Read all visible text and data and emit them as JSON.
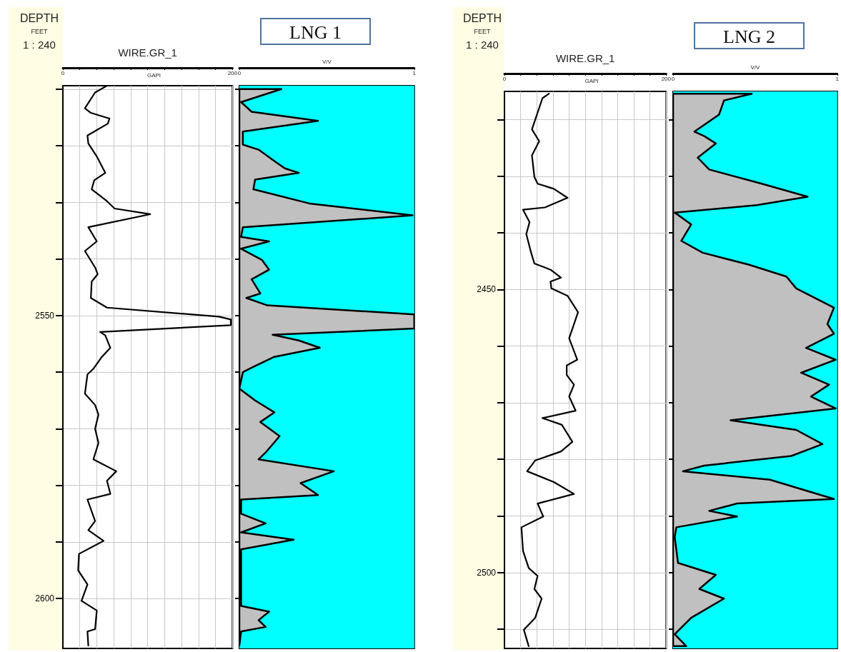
{
  "chart_data": [
    {
      "type": "line",
      "orientation": "horizontal",
      "ylabel": "DEPTH",
      "xlabel": "WIRE.GR_1",
      "annotations": [
        "FEET",
        "1 : 240",
        "GAPI"
      ],
      "x": [
        2509.4,
        2510.6,
        2513.4,
        2514.2,
        2515.2,
        2516.1,
        2518.2,
        2519.6,
        2521.9,
        2524.8,
        2526.1,
        2527.7,
        2529.8,
        2531.1,
        2532.1,
        2534.4,
        2536.9,
        2538.6,
        2541.5,
        2542.7,
        2544,
        2546.9,
        2548.6,
        2550.2,
        2550.7,
        2551.7,
        2552.9,
        2553.5,
        2555.7,
        2557.3,
        2559.4,
        2560.4,
        2563.8,
        2565.8,
        2567.5,
        2570,
        2572.5,
        2575.4,
        2577.5,
        2579.2,
        2581.5,
        2582.5,
        2586.3,
        2587.9,
        2589.8,
        2592.1,
        2595,
        2597.5,
        2600.4,
        2602.1,
        2605.4,
        2605.8,
        2608.3
      ],
      "values": [
        52,
        38,
        26,
        33,
        55,
        53,
        29,
        30,
        40,
        50,
        37,
        34,
        52,
        61,
        103,
        30,
        40,
        26,
        38,
        41,
        34,
        33,
        52,
        184,
        198,
        198,
        44,
        50,
        56,
        46,
        36,
        29,
        26,
        38,
        42,
        38,
        42,
        36,
        63,
        52,
        56,
        29,
        38,
        30,
        48,
        19,
        18,
        29,
        22,
        40,
        38,
        29,
        30
      ],
      "color": "#000000",
      "line_style": "solid",
      "grid": true,
      "xlim": [
        0,
        200
      ],
      "xticks": [
        0,
        {
          "value": 20,
          "label": null
        },
        {
          "value": 40,
          "label": null
        },
        {
          "value": 60,
          "label": null
        },
        {
          "value": 80,
          "label": null
        },
        {
          "value": 100,
          "label": null
        },
        {
          "value": 120,
          "label": null
        },
        {
          "value": 140,
          "label": null
        },
        {
          "value": 160,
          "label": null
        },
        {
          "value": 180,
          "label": null
        },
        200
      ],
      "ylim": [
        2608.8,
        2509.4
      ],
      "yticks": [
        {
          "value": 2510,
          "label": null
        },
        {
          "value": 2520,
          "label": null
        },
        {
          "value": 2530,
          "label": null
        },
        {
          "value": 2540,
          "label": null
        },
        2550,
        {
          "value": 2560,
          "label": null
        },
        {
          "value": 2570,
          "label": null
        },
        {
          "value": 2580,
          "label": null
        },
        {
          "value": 2590,
          "label": null
        },
        2600
      ]
    },
    {
      "type": "area",
      "orientation": "horizontal",
      "title": "LNG 1",
      "xlabel": "V/V",
      "x": [
        2510,
        2512.3,
        2514,
        2515.6,
        2517.5,
        2519.8,
        2520.7,
        2522.7,
        2524,
        2524.8,
        2526,
        2527.7,
        2530.2,
        2532.3,
        2534.4,
        2536.1,
        2536.9,
        2538.2,
        2540.2,
        2541.9,
        2543.6,
        2546.1,
        2546.9,
        2548.2,
        2549.8,
        2552.3,
        2553.4,
        2554.4,
        2555.7,
        2557.3,
        2559.2,
        2560,
        2562.9,
        2565,
        2567.1,
        2568.8,
        2571.3,
        2574.2,
        2575.4,
        2577.5,
        2579.6,
        2581.7,
        2582.5,
        2585,
        2586.7,
        2588.3,
        2589.6,
        2591.3,
        2601.3,
        2602.3,
        2603.8,
        2605,
        2605.8,
        2608.3
      ],
      "values": [
        0.24,
        0.01,
        0.07,
        0.45,
        0.02,
        0.02,
        0.11,
        0.2,
        0.26,
        0.34,
        0.09,
        0.08,
        0.4,
        0.99,
        0.02,
        0.01,
        0.17,
        0.01,
        0.13,
        0.17,
        0.07,
        0.12,
        0.04,
        0.16,
        1.0,
        1.0,
        0.19,
        0.34,
        0.46,
        0.2,
        0.07,
        0.02,
        0,
        0.09,
        0.2,
        0.12,
        0.23,
        0.15,
        0.11,
        0.54,
        0.35,
        0.45,
        0.01,
        0.01,
        0.15,
        0.01,
        0.31,
        0.01,
        0.01,
        0.17,
        0.11,
        0.15,
        0.01,
        0
      ],
      "color": "#c0c0c0",
      "tick_labels": "x",
      "bands": [
        {
          "axis": "x",
          "from": 0,
          "to": 1,
          "color": "#00ffff"
        }
      ],
      "xlim": [
        0,
        1
      ],
      "xticks": [
        0,
        1
      ],
      "ylim": [
        2608.8,
        2509.4
      ],
      "yticks": [
        {
          "value": 2510,
          "label": null
        },
        {
          "value": 2520,
          "label": null
        },
        {
          "value": 2530,
          "label": null
        },
        {
          "value": 2540,
          "label": null
        },
        2550,
        {
          "value": 2560,
          "label": null
        },
        {
          "value": 2570,
          "label": null
        },
        {
          "value": 2580,
          "label": null
        },
        {
          "value": 2590,
          "label": null
        },
        2600
      ]
    },
    {
      "type": "line",
      "orientation": "horizontal",
      "ylabel": "DEPTH",
      "xlabel": "WIRE.GR_1",
      "annotations": [
        "FEET",
        "1 : 240",
        "GAPI"
      ],
      "x": [
        2415.4,
        2416.2,
        2421.7,
        2423.8,
        2426.3,
        2430.1,
        2431.3,
        2432.2,
        2433.8,
        2435.5,
        2435.9,
        2438.1,
        2440.2,
        2443.5,
        2445.4,
        2446.5,
        2447.9,
        2448.6,
        2449.8,
        2451.1,
        2454,
        2456.1,
        2458.6,
        2462.4,
        2463.4,
        2465.1,
        2466.8,
        2468.9,
        2471.4,
        2472.7,
        2473.9,
        2476.9,
        2478.6,
        2480.2,
        2482.1,
        2484,
        2486.1,
        2487.8,
        2490.1,
        2492,
        2496.2,
        2499.2,
        2500.6,
        2502.9,
        2504.6,
        2508,
        2510.1,
        2513
      ],
      "values": [
        55,
        47,
        34,
        43,
        34,
        37,
        41,
        61,
        78,
        50,
        23,
        31,
        27,
        33,
        37,
        57,
        70,
        57,
        58,
        78,
        91,
        86,
        80,
        90,
        77,
        77,
        86,
        80,
        88,
        47,
        71,
        84,
        70,
        38,
        28,
        61,
        86,
        41,
        48,
        21,
        23,
        30,
        41,
        37,
        46,
        38,
        24,
        30
      ],
      "color": "#000000",
      "line_style": "solid",
      "grid": true,
      "xlim": [
        0,
        200
      ],
      "xticks": [
        0,
        {
          "value": 20,
          "label": null
        },
        {
          "value": 40,
          "label": null
        },
        {
          "value": 60,
          "label": null
        },
        {
          "value": 80,
          "label": null
        },
        {
          "value": 100,
          "label": null
        },
        {
          "value": 120,
          "label": null
        },
        {
          "value": 140,
          "label": null
        },
        {
          "value": 160,
          "label": null
        },
        {
          "value": 180,
          "label": null
        },
        200
      ],
      "ylim": [
        2513.4,
        2415
      ],
      "yticks": [
        {
          "value": 2420,
          "label": null
        },
        {
          "value": 2430,
          "label": null
        },
        {
          "value": 2440,
          "label": null
        },
        2450,
        {
          "value": 2460,
          "label": null
        },
        {
          "value": 2470,
          "label": null
        },
        {
          "value": 2480,
          "label": null
        },
        {
          "value": 2490,
          "label": null
        },
        2500,
        {
          "value": 2510,
          "label": null
        }
      ]
    },
    {
      "type": "area",
      "orientation": "horizontal",
      "title": "LNG 2",
      "xlabel": "V/V",
      "x": [
        2415.4,
        2416.6,
        2419.1,
        2422.1,
        2422.9,
        2424.2,
        2426.7,
        2428.8,
        2431.3,
        2433.6,
        2435.1,
        2436.4,
        2438.5,
        2441.4,
        2443.5,
        2445.6,
        2447.7,
        2449.8,
        2453.2,
        2456.1,
        2457.8,
        2460.3,
        2462.4,
        2464.7,
        2466.8,
        2468.9,
        2471,
        2473.1,
        2474.8,
        2477.3,
        2479.4,
        2481.1,
        2482.1,
        2483.6,
        2487,
        2487.8,
        2489.1,
        2490.1,
        2492,
        2493.7,
        2498.3,
        2500.4,
        2502.9,
        2504.6,
        2508,
        2510.9,
        2513
      ],
      "values": [
        0.48,
        0.31,
        0.28,
        0.13,
        0.19,
        0.26,
        0.15,
        0.22,
        0.54,
        0.82,
        0.51,
        0.01,
        0.11,
        0.05,
        0.18,
        0.46,
        0.69,
        0.75,
        0.98,
        0.94,
        0.98,
        0.81,
        0.99,
        0.78,
        0.95,
        0.84,
        0.99,
        0.35,
        0.75,
        0.91,
        0.72,
        0.19,
        0.06,
        0.59,
        0.98,
        0.39,
        0.22,
        0.39,
        0.02,
        0.01,
        0.03,
        0.26,
        0.16,
        0.31,
        0.11,
        0.01,
        0.08
      ],
      "color": "#c0c0c0",
      "tick_labels": "x",
      "bands": [
        {
          "axis": "x",
          "from": 0,
          "to": 1,
          "color": "#00ffff"
        }
      ],
      "xlim": [
        0,
        1
      ],
      "xticks": [
        0,
        1
      ],
      "ylim": [
        2513.4,
        2415
      ],
      "yticks": [
        {
          "value": 2420,
          "label": null
        },
        {
          "value": 2430,
          "label": null
        },
        {
          "value": 2440,
          "label": null
        },
        2450,
        {
          "value": 2460,
          "label": null
        },
        {
          "value": 2470,
          "label": null
        },
        {
          "value": 2480,
          "label": null
        },
        {
          "value": 2490,
          "label": null
        },
        2500,
        {
          "value": 2510,
          "label": null
        }
      ]
    }
  ]
}
